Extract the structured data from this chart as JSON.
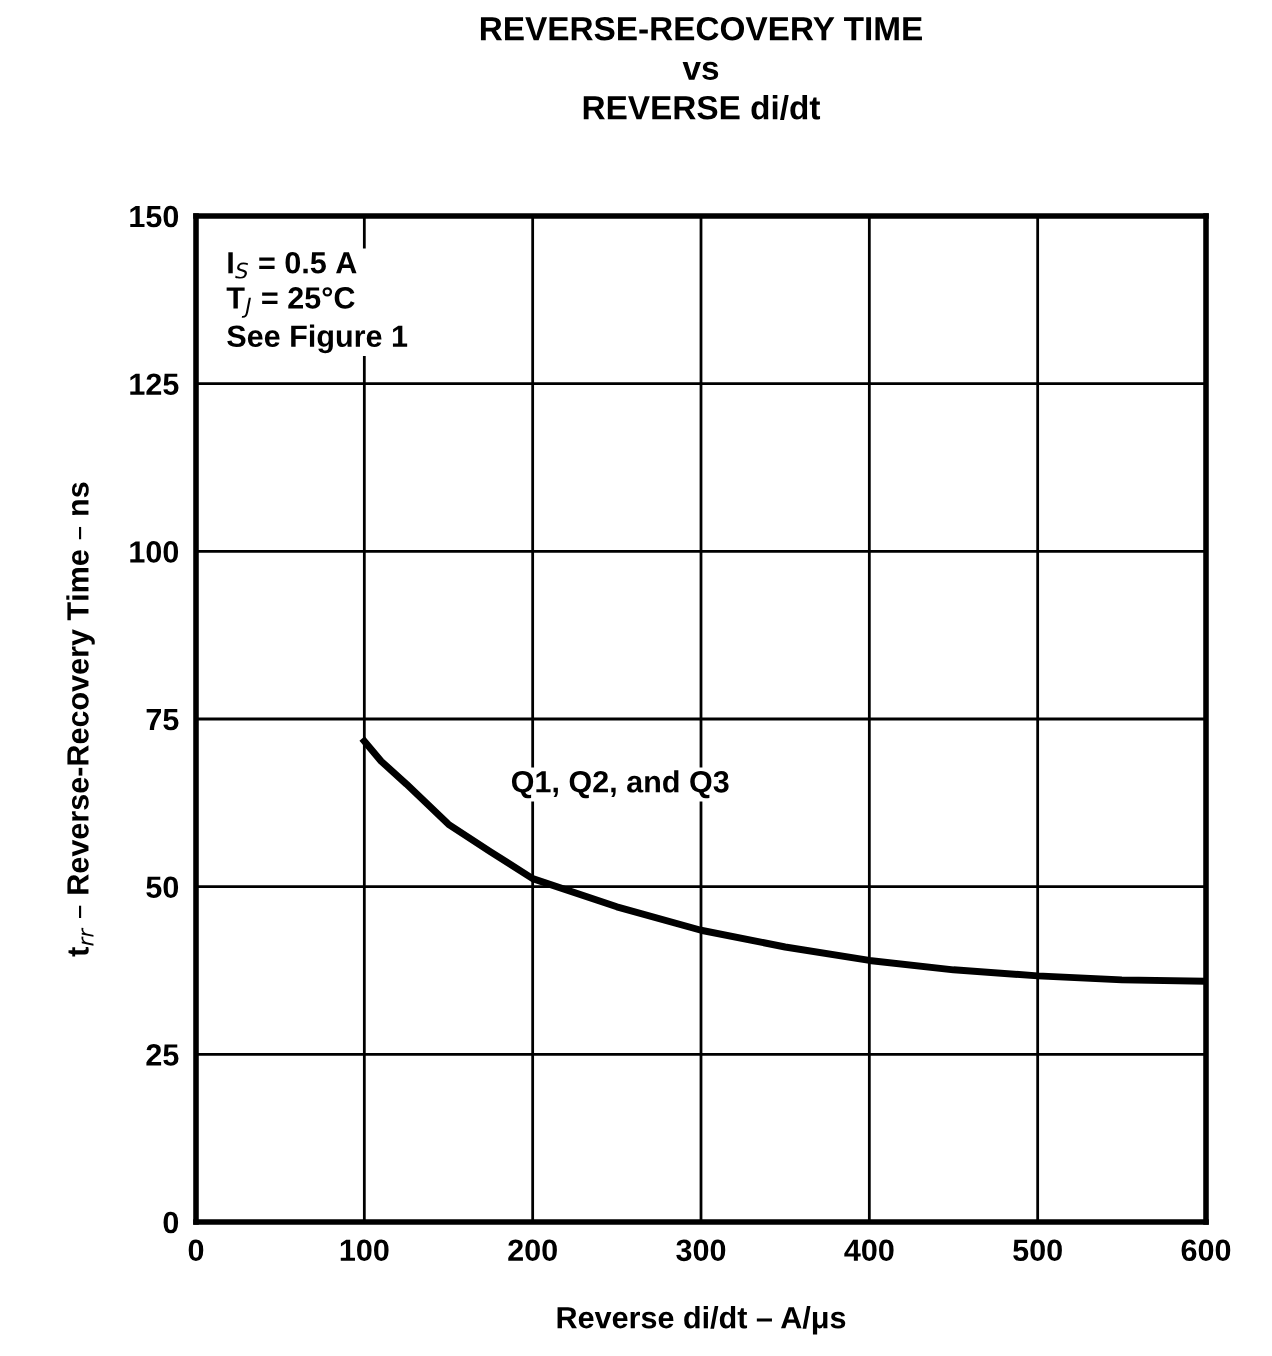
{
  "chart_data": {
    "type": "line",
    "title": "REVERSE-RECOVERY TIME\nvs\nREVERSE di/dt",
    "xlabel": "Reverse di/dt – A/μs",
    "ylabel": "t$_{rr}$ – Reverse-Recovery Time – ns",
    "x": [
      100,
      110,
      125,
      150,
      175,
      200,
      250,
      300,
      350,
      400,
      450,
      500,
      550,
      600
    ],
    "series": [
      {
        "color": "#000000",
        "values": [
          71.7,
          68.7,
          65.3,
          59.3,
          55.2,
          51.2,
          47,
          43.5,
          41,
          39,
          37.6,
          36.7,
          36.1,
          35.9
        ]
      }
    ],
    "annotations": [
      "I$_{S}$ = 0.5 A\nT$_{J}$ = 25°C\nSee Figure 1",
      "Q1, Q2, and Q3"
    ],
    "xlim": [
      0,
      600
    ],
    "ylim": [
      0,
      150
    ],
    "xticks": [
      0,
      100,
      200,
      300,
      400,
      500,
      600
    ],
    "yticks": [
      0,
      25,
      50,
      75,
      100,
      125,
      150
    ],
    "grid": true,
    "legend": false,
    "marker": "none",
    "line_style": "solid"
  }
}
